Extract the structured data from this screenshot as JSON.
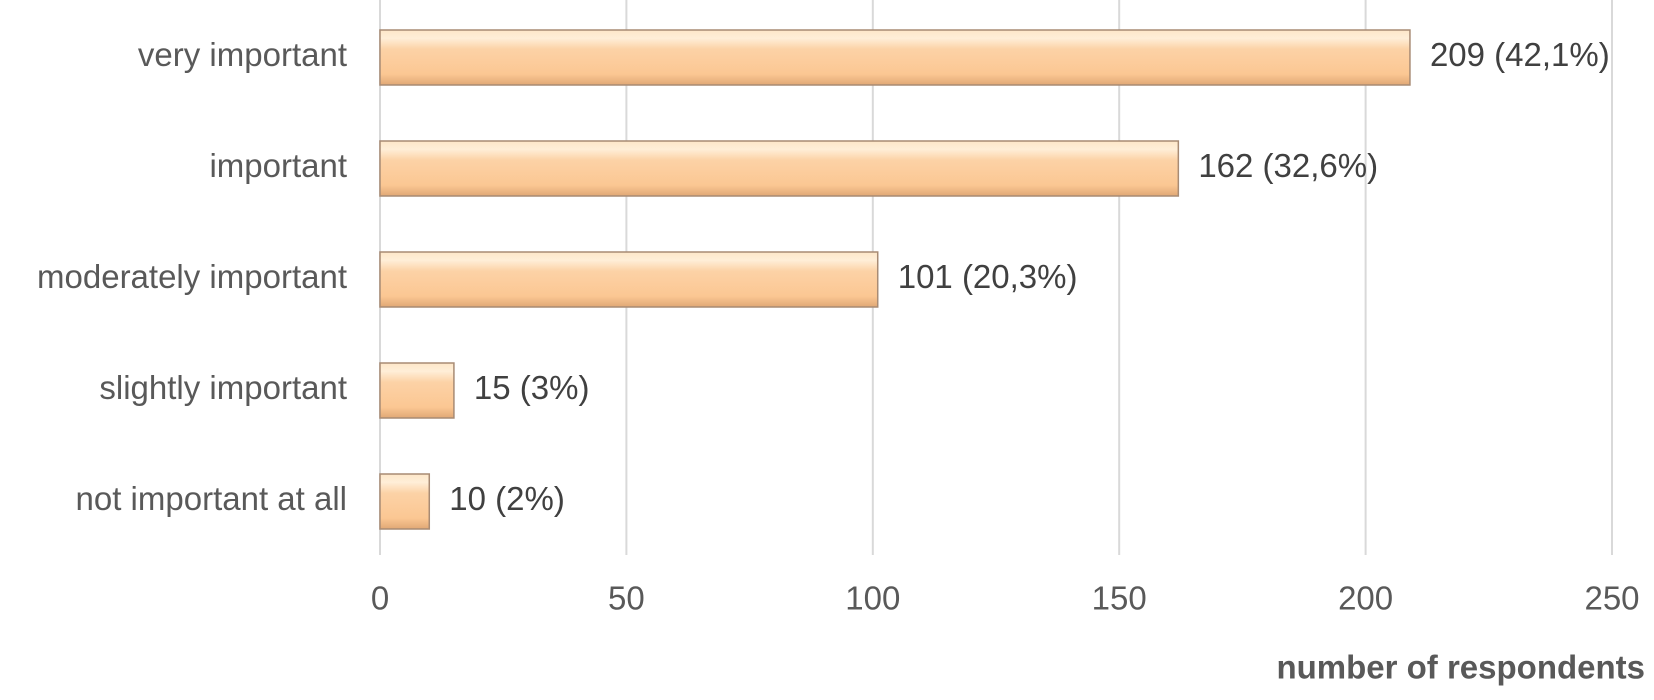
{
  "chart_data": {
    "type": "hbar",
    "categories": [
      "very important",
      "important",
      "moderately important",
      "slightly important",
      "not important at all"
    ],
    "values": [
      209,
      162,
      101,
      15,
      10
    ],
    "value_labels": [
      "209 (42,1%)",
      "162 (32,6%)",
      "101 (20,3%)",
      "15 (3%)",
      "10 (2%)"
    ],
    "color": "#fbc793",
    "xlabel": "number of respondents",
    "xlim": [
      0,
      250
    ],
    "xticks": [
      0,
      50,
      100,
      150,
      200,
      250
    ],
    "grid": true
  }
}
